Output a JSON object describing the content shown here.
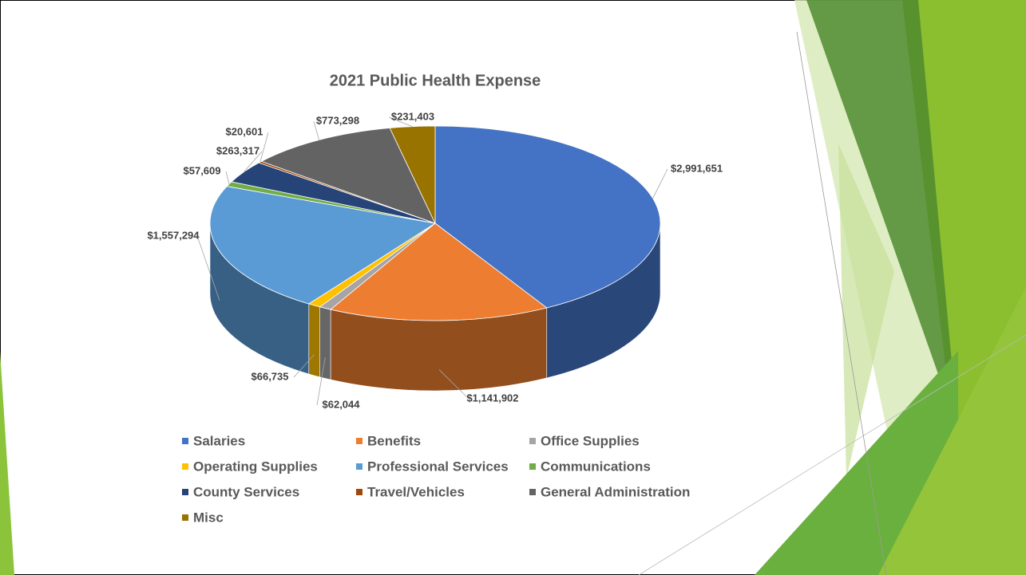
{
  "chart_data": {
    "type": "pie",
    "title": "2021 Public Health Expense",
    "categories": [
      "Salaries",
      "Benefits",
      "Office Supplies",
      "Operating Supplies",
      "Professional Services",
      "Communications",
      "County Services",
      "Travel/Vehicles",
      "General Administration",
      "Misc"
    ],
    "values": [
      2991651,
      1141902,
      62044,
      66735,
      1557294,
      57609,
      263317,
      20601,
      773298,
      231403
    ],
    "value_labels": [
      "$2,991,651",
      "$1,141,902",
      "$62,044",
      "$66,735",
      "$1,557,294",
      "$57,609",
      "$263,317",
      "$20,601",
      "$773,298",
      "$231,403"
    ],
    "colors": [
      "#4472c4",
      "#ed7d31",
      "#a5a5a5",
      "#ffc000",
      "#5b9bd5",
      "#70ad47",
      "#264478",
      "#9e480e",
      "#636363",
      "#997300"
    ],
    "legend": "bottom"
  }
}
